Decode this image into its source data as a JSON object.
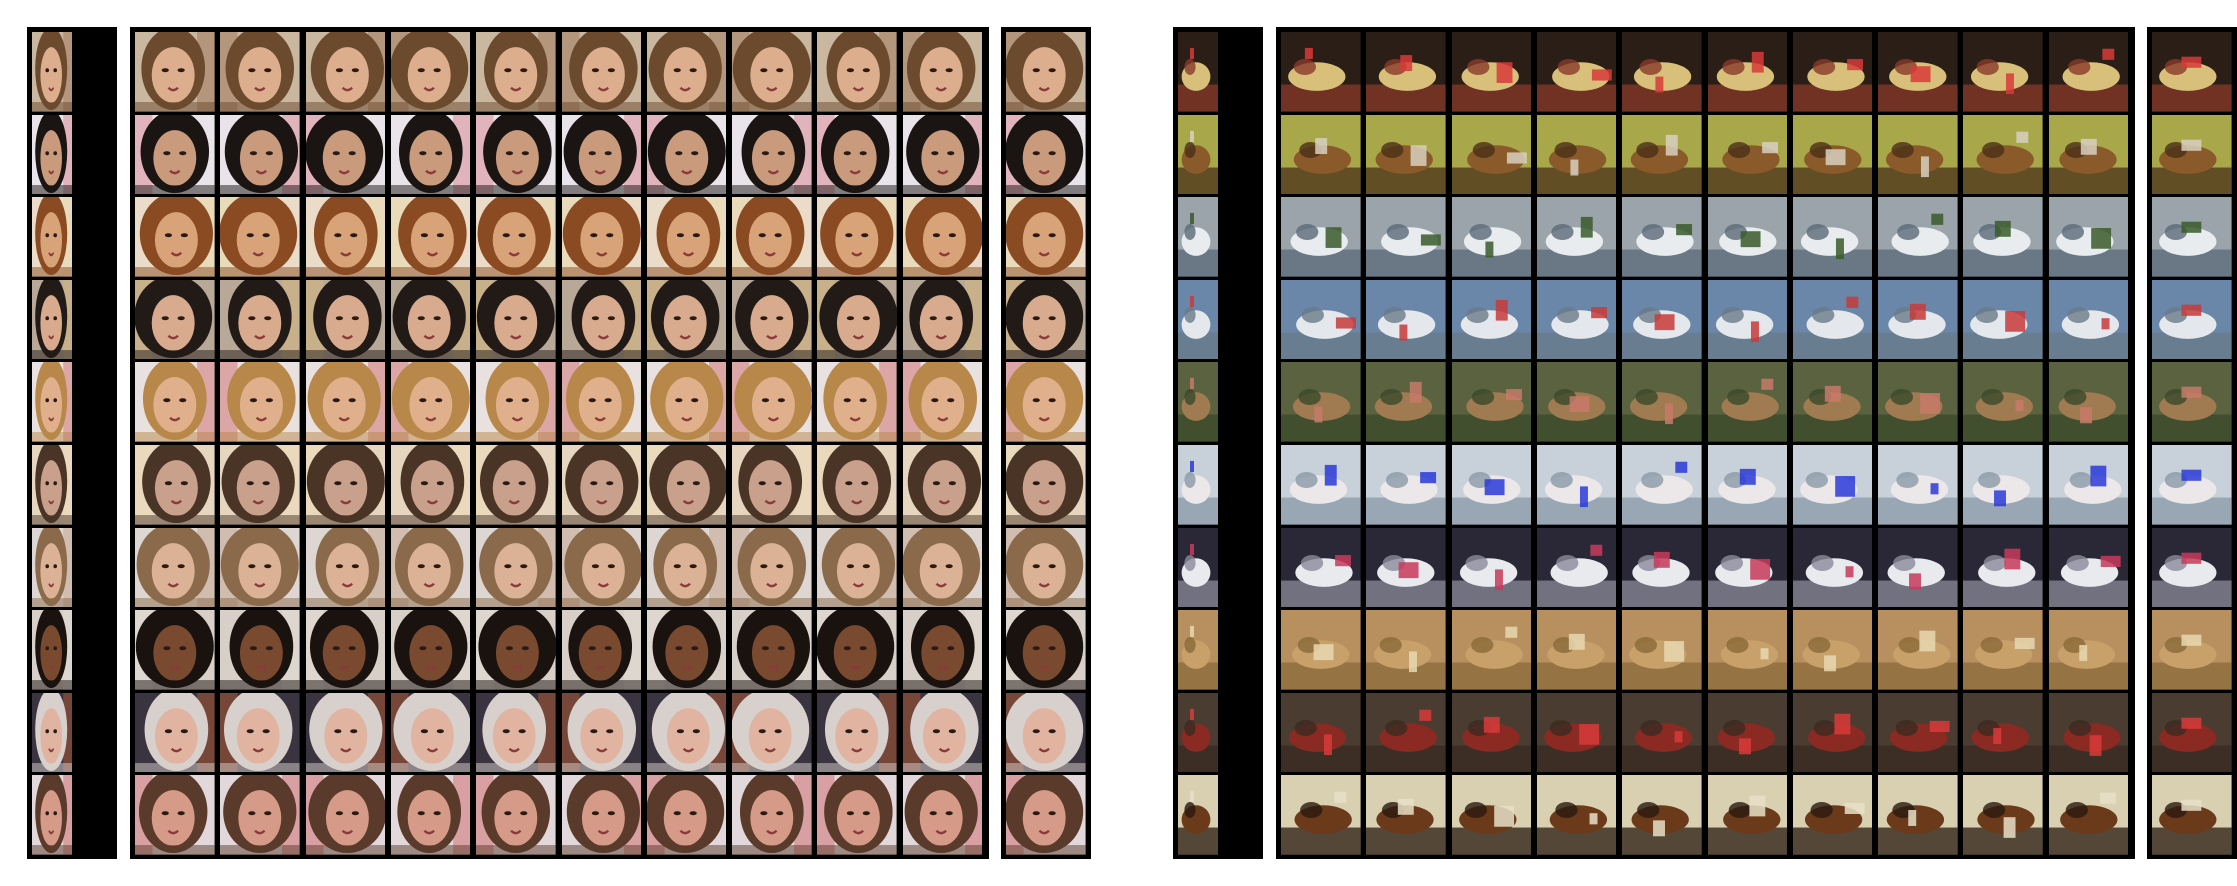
{
  "panels": [
    {
      "name": "faces",
      "rows": [
        {
          "subject": "face",
          "skin": "#dcae8e",
          "hair": "#6b4a2e",
          "bg": "#c9b7a0",
          "accent": "#8a5a3a"
        },
        {
          "subject": "face",
          "skin": "#c99a7c",
          "hair": "#1a1412",
          "bg": "#e8e4ea",
          "accent": "#d45a6a"
        },
        {
          "subject": "face",
          "skin": "#d9a37a",
          "hair": "#8a4a22",
          "bg": "#eadcc8",
          "accent": "#e8d8a0"
        },
        {
          "subject": "face",
          "skin": "#d8ab8e",
          "hair": "#221a16",
          "bg": "#b8a898",
          "accent": "#e2c070"
        },
        {
          "subject": "face",
          "skin": "#e0b08c",
          "hair": "#b8884a",
          "bg": "#e9e1df",
          "accent": "#c43a3a"
        },
        {
          "subject": "face",
          "skin": "#c9a08c",
          "hair": "#4a3426",
          "bg": "#e6d6c0",
          "accent": "#f0e0b8"
        },
        {
          "subject": "face",
          "skin": "#dcb296",
          "hair": "#8a6a4a",
          "bg": "#ded6d2",
          "accent": "#b89070"
        },
        {
          "subject": "face",
          "skin": "#7a4a30",
          "hair": "#1a120e",
          "bg": "#d8cfc8",
          "accent": "#ece4dc"
        },
        {
          "subject": "face",
          "skin": "#e0b4a0",
          "hair": "#d8d0cc",
          "bg": "#3a3440",
          "accent": "#e86a2a"
        },
        {
          "subject": "face",
          "skin": "#d69a88",
          "hair": "#5a3a2a",
          "bg": "#e2d8dc",
          "accent": "#c83a3a"
        }
      ]
    },
    {
      "name": "objects",
      "rows": [
        {
          "subject": "object",
          "skin": "#d8c07a",
          "hair": "#8a3a2a",
          "bg": "#2a1e16",
          "accent": "#d83a3a"
        },
        {
          "subject": "object",
          "skin": "#8a5a2a",
          "hair": "#4a3018",
          "bg": "#a8a84a",
          "accent": "#d8d0c0"
        },
        {
          "subject": "object",
          "skin": "#e8ecee",
          "hair": "#5a6a78",
          "bg": "#9aa4aa",
          "accent": "#3a5a2a"
        },
        {
          "subject": "object",
          "skin": "#e4e8ec",
          "hair": "#6a7a8a",
          "bg": "#6a86a8",
          "accent": "#c83a3a"
        },
        {
          "subject": "object",
          "skin": "#a07a50",
          "hair": "#3a4a2a",
          "bg": "#5a6240",
          "accent": "#c87a6a"
        },
        {
          "subject": "object",
          "skin": "#ece8ea",
          "hair": "#8a9aa8",
          "bg": "#c8d0da",
          "accent": "#2a3ad8"
        },
        {
          "subject": "object",
          "skin": "#e8eaee",
          "hair": "#8a8a9a",
          "bg": "#2a2836",
          "accent": "#c83a5a"
        },
        {
          "subject": "object",
          "skin": "#c8a06a",
          "hair": "#8a6a3a",
          "bg": "#b89060",
          "accent": "#e8d8b0"
        },
        {
          "subject": "object",
          "skin": "#8a2a22",
          "hair": "#3a2a22",
          "bg": "#4a3c30",
          "accent": "#d83a3a"
        },
        {
          "subject": "object",
          "skin": "#6a3a1a",
          "hair": "#2a1a10",
          "bg": "#d8d0b0",
          "accent": "#e8e0c8"
        }
      ]
    }
  ]
}
